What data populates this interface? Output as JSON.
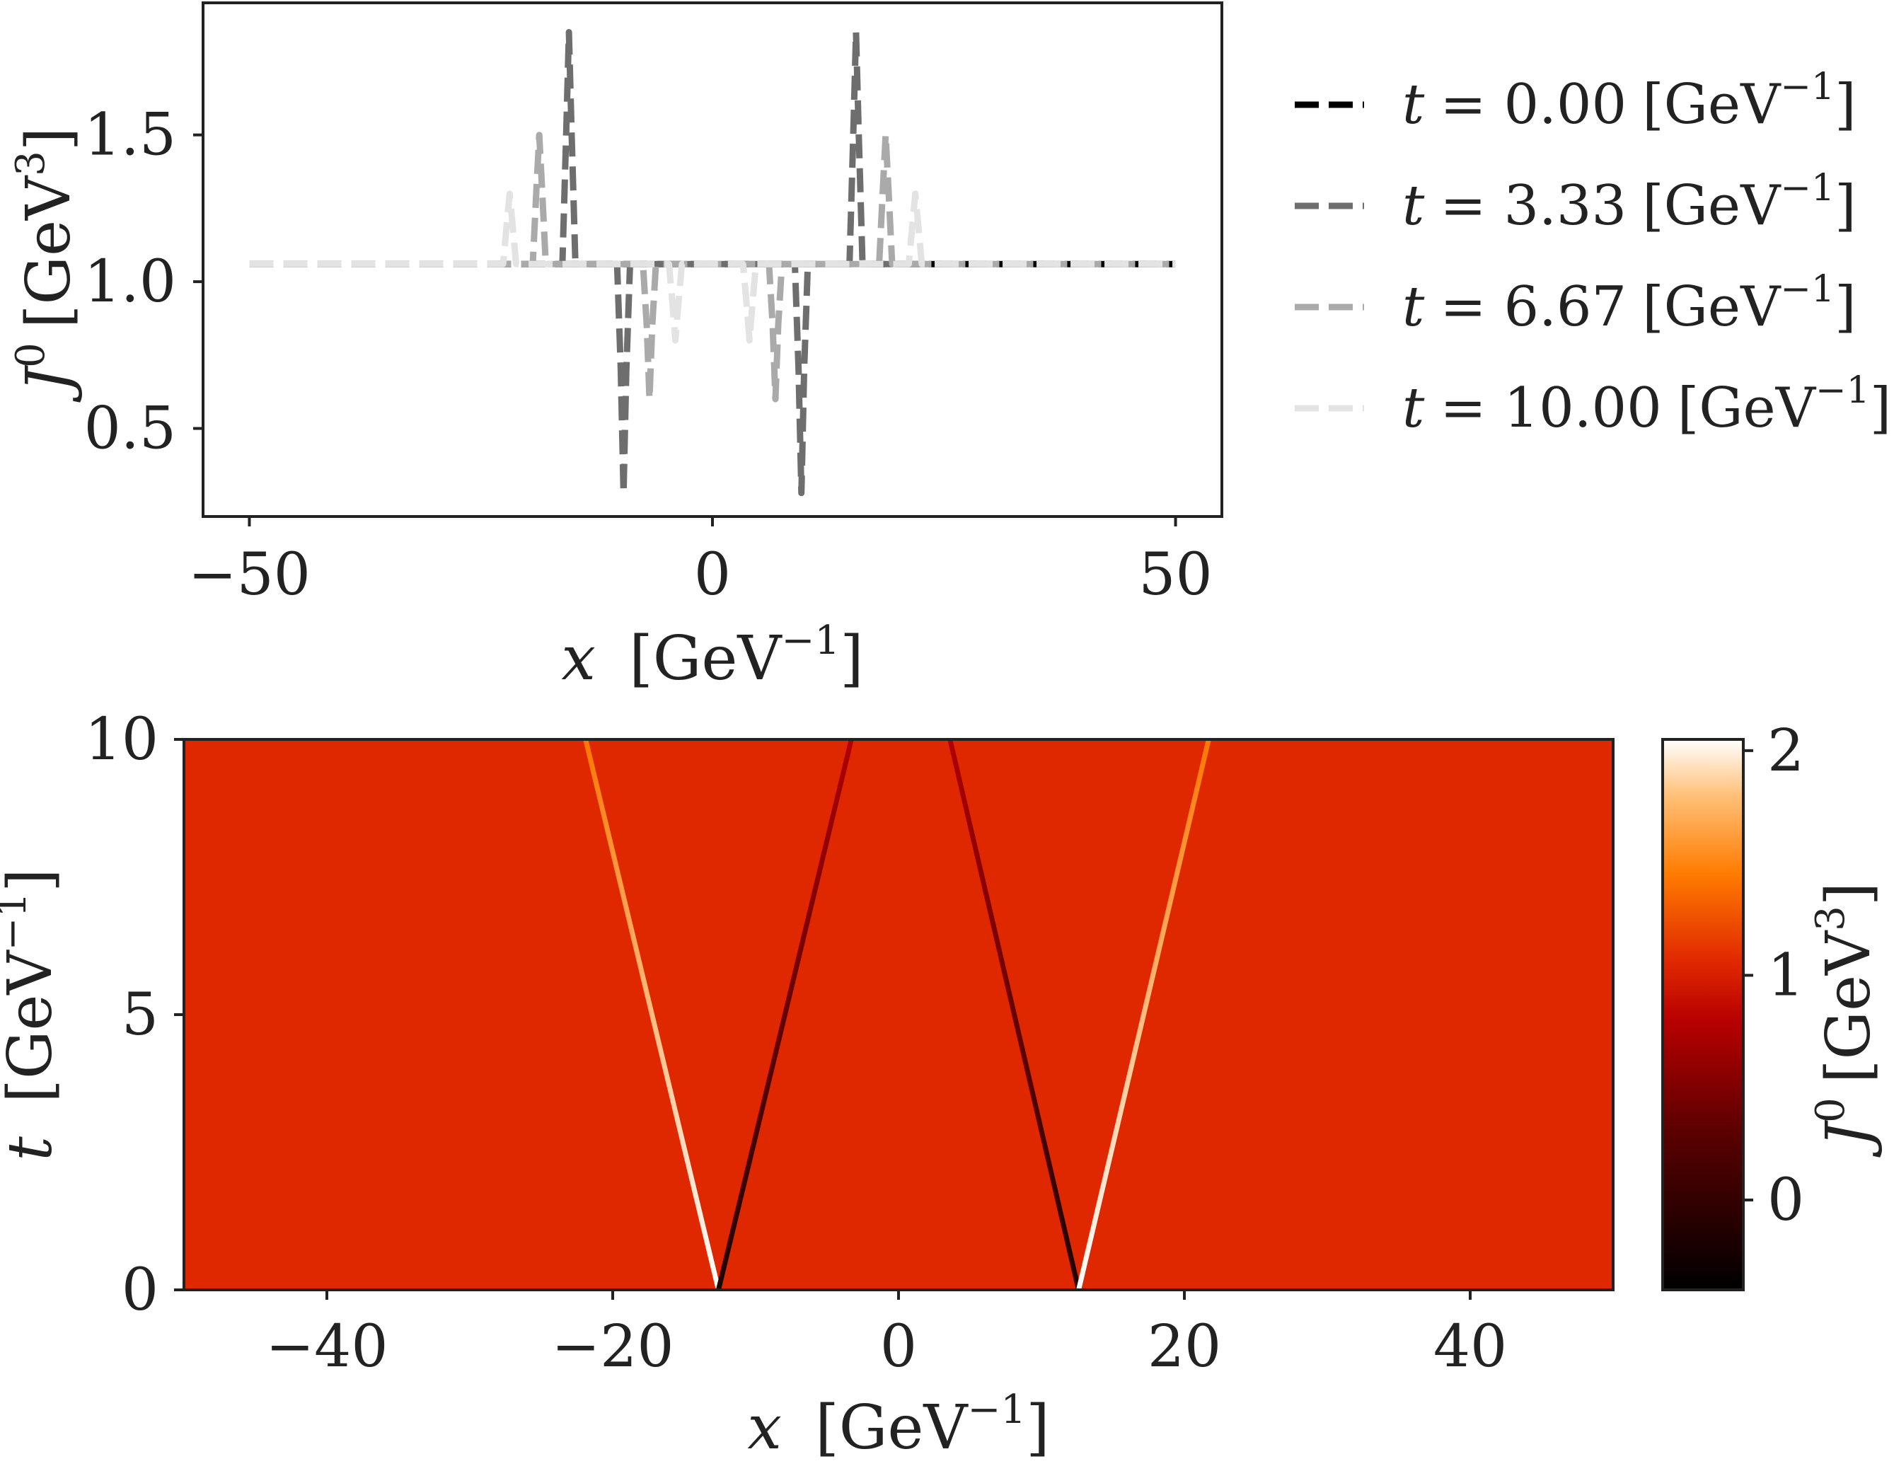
{
  "chart_data": [
    {
      "type": "line",
      "xlabel": {
        "var": "x",
        "unit": "[GeV",
        "exp": "−1",
        "close": "]"
      },
      "ylabel": {
        "var": "J",
        "sup": "0",
        "unit": "[GeV",
        "exp": "3",
        "close": "]"
      },
      "xlim": [
        -55,
        55
      ],
      "ylim": [
        0.2,
        1.95
      ],
      "xticks": [
        -50,
        0,
        50
      ],
      "xtick_labels": [
        "−50",
        "0",
        "50"
      ],
      "yticks": [
        0.5,
        1.0,
        1.5
      ],
      "ytick_labels": [
        "0.5",
        "1.0",
        "1.5"
      ],
      "grid": false,
      "legend_position": "outside-right",
      "series": [
        {
          "name": "t = 0.00 [GeV⁻¹]",
          "legend": {
            "var": "t",
            "eq": "= 0.00",
            "unit": "[GeV",
            "exp": "−1",
            "close": "]"
          },
          "color": "#000000",
          "linestyle": "dashed",
          "x": [
            -50,
            -12.6,
            -12.6,
            12.6,
            12.6,
            50
          ],
          "y": [
            1.06,
            1.06,
            1.06,
            1.06,
            1.06,
            1.06
          ]
        },
        {
          "name": "t = 3.33 [GeV⁻¹]",
          "legend": {
            "var": "t",
            "eq": "= 3.33",
            "unit": "[GeV",
            "exp": "−1",
            "close": "]"
          },
          "color": "#6e6e6e",
          "linestyle": "dashed",
          "x": [
            -50,
            -16.2,
            -15.8,
            -15.5,
            -15.2,
            -14.8,
            -10.3,
            -9.9,
            -9.6,
            -9.3,
            -8.9,
            8.9,
            9.3,
            9.6,
            9.9,
            10.3,
            14.8,
            15.2,
            15.5,
            15.8,
            16.2,
            50
          ],
          "y": [
            1.06,
            1.06,
            1.5,
            1.85,
            1.5,
            1.06,
            1.06,
            0.7,
            0.28,
            0.7,
            1.06,
            1.06,
            0.7,
            0.28,
            0.7,
            1.06,
            1.06,
            1.5,
            1.85,
            1.5,
            1.06,
            1.06
          ]
        },
        {
          "name": "t = 6.67 [GeV⁻¹]",
          "legend": {
            "var": "t",
            "eq": "= 6.67",
            "unit": "[GeV",
            "exp": "−1",
            "close": "]"
          },
          "color": "#aaaaaa",
          "linestyle": "dashed",
          "x": [
            -50,
            -19.4,
            -19.0,
            -18.7,
            -18.4,
            -18.0,
            -7.5,
            -7.1,
            -6.8,
            -6.5,
            -6.1,
            6.1,
            6.5,
            6.8,
            7.1,
            7.5,
            18.0,
            18.4,
            18.7,
            19.0,
            19.4,
            50
          ],
          "y": [
            1.06,
            1.06,
            1.32,
            1.5,
            1.32,
            1.06,
            1.06,
            0.85,
            0.6,
            0.85,
            1.06,
            1.06,
            0.85,
            0.6,
            0.85,
            1.06,
            1.06,
            1.32,
            1.5,
            1.32,
            1.06,
            1.06
          ]
        },
        {
          "name": "t = 10.00 [GeV⁻¹]",
          "legend": {
            "var": "t",
            "eq": "= 10.00",
            "unit": "[GeV",
            "exp": "−1",
            "close": "]"
          },
          "color": "#e3e3e3",
          "linestyle": "dashed",
          "x": [
            -50,
            -22.6,
            -22.2,
            -21.9,
            -21.6,
            -21.2,
            -4.7,
            -4.3,
            -4.0,
            -3.7,
            -3.3,
            3.3,
            3.7,
            4.0,
            4.3,
            4.7,
            21.2,
            21.6,
            21.9,
            22.2,
            22.6,
            50
          ],
          "y": [
            1.06,
            1.06,
            1.2,
            1.3,
            1.2,
            1.06,
            1.06,
            0.92,
            0.8,
            0.92,
            1.06,
            1.06,
            0.92,
            0.8,
            0.92,
            1.06,
            1.06,
            1.2,
            1.3,
            1.2,
            1.06,
            1.06
          ]
        }
      ]
    },
    {
      "type": "heatmap",
      "xlabel": {
        "var": "x",
        "unit": "[GeV",
        "exp": "−1",
        "close": "]"
      },
      "ylabel": {
        "var": "t",
        "unit": "[GeV",
        "exp": "−1",
        "close": "]"
      },
      "xlim": [
        -50,
        50
      ],
      "ylim": [
        0,
        10
      ],
      "xticks": [
        -40,
        -20,
        0,
        20,
        40
      ],
      "xtick_labels": [
        "−40",
        "−20",
        "0",
        "20",
        "40"
      ],
      "yticks": [
        0,
        5,
        10
      ],
      "ytick_labels": [
        "0",
        "5",
        "10"
      ],
      "grid": false,
      "colormap": "gist_heat",
      "background_value": 1.06,
      "colorbar": {
        "label": {
          "var": "J",
          "sup": "0",
          "unit": "[GeV",
          "exp": "3",
          "close": "]"
        },
        "range": [
          -0.4,
          2.05
        ],
        "ticks": [
          0,
          1,
          2
        ],
        "tick_labels": [
          "0",
          "1",
          "2"
        ],
        "stops": [
          {
            "value": -0.4,
            "color": "#000000"
          },
          {
            "value": 0.3,
            "color": "#5a0000"
          },
          {
            "value": 0.8,
            "color": "#b80000"
          },
          {
            "value": 1.06,
            "color": "#e02800"
          },
          {
            "value": 1.45,
            "color": "#ff7b00"
          },
          {
            "value": 1.8,
            "color": "#ffc078"
          },
          {
            "value": 2.05,
            "color": "#ffffff"
          }
        ]
      },
      "fronts": [
        {
          "name": "left-outer-peak",
          "x0": -12.6,
          "x1": -21.9,
          "t0": 0,
          "t1": 10,
          "color_start": "#ffffff",
          "color_end": "#ff7700"
        },
        {
          "name": "left-inner-dip",
          "x0": -12.6,
          "x1": -3.3,
          "t0": 0,
          "t1": 10,
          "color_start": "#200000",
          "color_end": "#b00000"
        },
        {
          "name": "right-inner-dip",
          "x0": 12.6,
          "x1": 3.6,
          "t0": 0,
          "t1": 10,
          "color_start": "#200000",
          "color_end": "#b00000"
        },
        {
          "name": "right-outer-peak",
          "x0": 12.6,
          "x1": 21.7,
          "t0": 0,
          "t1": 10,
          "color_start": "#ffffff",
          "color_end": "#ff7700"
        }
      ]
    }
  ]
}
